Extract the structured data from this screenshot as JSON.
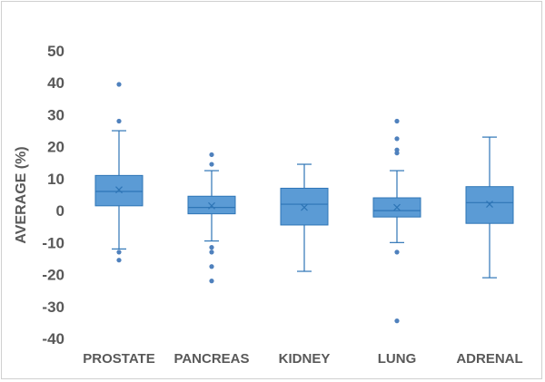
{
  "chart_data": {
    "type": "box",
    "title": "",
    "xlabel": "",
    "ylabel": "AVERAGE (%)",
    "ylim": [
      -40,
      50
    ],
    "yticks": [
      50,
      40,
      30,
      20,
      10,
      0,
      -10,
      -20,
      -30,
      -40
    ],
    "grid": false,
    "legend": "none",
    "colors": {
      "box_fill": "#5b9bd5",
      "box_stroke": "#2e75b6",
      "whisker": "#2e75b6",
      "outlier": "#4f81bd",
      "text": "#595959"
    },
    "categories": [
      "PROSTATE",
      "PANCREAS",
      "KIDNEY",
      "LUNG",
      "ADRENAL"
    ],
    "boxes": [
      {
        "category": "PROSTATE",
        "whisker_low": -12,
        "q1": 1.5,
        "median": 6,
        "q3": 11,
        "whisker_high": 25,
        "mean": 6.5,
        "outliers": [
          39.5,
          28,
          -13,
          -15.5
        ]
      },
      {
        "category": "PANCREAS",
        "whisker_low": -9.5,
        "q1": -1,
        "median": 1,
        "q3": 4.5,
        "whisker_high": 12.5,
        "mean": 1.5,
        "outliers": [
          17.5,
          14.5,
          -11.5,
          -13,
          -17.5,
          -22
        ]
      },
      {
        "category": "KIDNEY",
        "whisker_low": -19,
        "q1": -4.5,
        "median": 2,
        "q3": 7,
        "whisker_high": 14.5,
        "mean": 1,
        "outliers": []
      },
      {
        "category": "LUNG",
        "whisker_low": -10,
        "q1": -2,
        "median": 0,
        "q3": 4,
        "whisker_high": 12.5,
        "mean": 1,
        "outliers": [
          28,
          22.5,
          19,
          18,
          -13,
          -34.5
        ]
      },
      {
        "category": "ADRENAL",
        "whisker_low": -21,
        "q1": -4,
        "median": 2.5,
        "q3": 7.5,
        "whisker_high": 23,
        "mean": 2,
        "outliers": []
      }
    ]
  }
}
